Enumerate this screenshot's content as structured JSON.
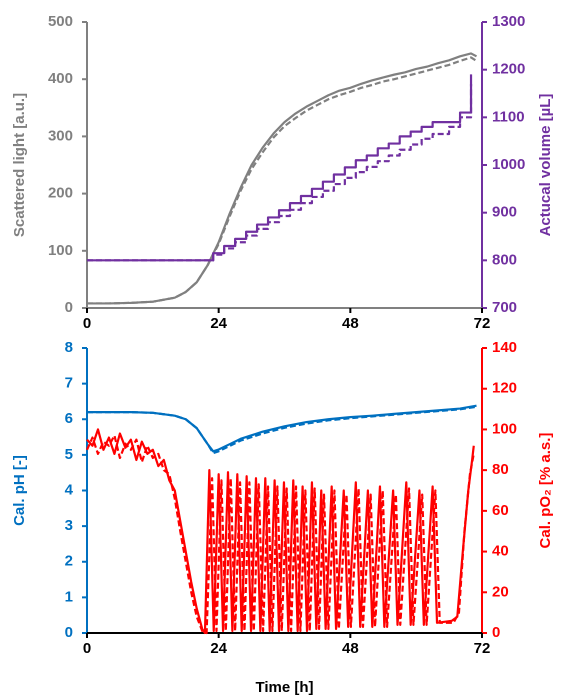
{
  "chart_data": [
    {
      "type": "line",
      "y_label": "Scattered light  [a.u.]",
      "y2_label": "Actucal volume  [µL]",
      "y_color": "#808080",
      "y2_color": "#7030a0",
      "xlim": [
        0,
        72
      ],
      "xticks": [
        0,
        24,
        48,
        72
      ],
      "ylim": [
        0,
        500
      ],
      "yticks": [
        0,
        100,
        200,
        300,
        400,
        500
      ],
      "y2lim": [
        700,
        1300
      ],
      "y2ticks": [
        700,
        800,
        900,
        1000,
        1100,
        1200,
        1300
      ],
      "series": [
        {
          "color": "#808080",
          "dash": false,
          "x": [
            0,
            4,
            8,
            12,
            16,
            18,
            20,
            22,
            24,
            26,
            28,
            30,
            32,
            34,
            36,
            38,
            40,
            42,
            44,
            46,
            48,
            50,
            52,
            54,
            56,
            58,
            60,
            62,
            64,
            66,
            68,
            70,
            71
          ],
          "values": [
            8,
            8,
            9,
            11,
            18,
            28,
            45,
            75,
            115,
            165,
            210,
            250,
            280,
            305,
            325,
            340,
            352,
            362,
            372,
            380,
            385,
            392,
            398,
            403,
            408,
            412,
            418,
            422,
            428,
            433,
            440,
            445,
            440
          ]
        },
        {
          "color": "#808080",
          "dash": true,
          "x": [
            0,
            4,
            8,
            12,
            16,
            18,
            20,
            22,
            24,
            26,
            28,
            30,
            32,
            34,
            36,
            38,
            40,
            42,
            44,
            46,
            48,
            50,
            52,
            54,
            56,
            58,
            60,
            62,
            64,
            66,
            68,
            70,
            71
          ],
          "values": [
            8,
            8,
            9,
            11,
            18,
            28,
            45,
            75,
            112,
            160,
            205,
            243,
            272,
            298,
            318,
            332,
            345,
            355,
            365,
            372,
            378,
            385,
            390,
            396,
            400,
            405,
            410,
            415,
            420,
            425,
            432,
            438,
            432
          ]
        },
        {
          "color": "#7030a0",
          "dash": false,
          "axis": "y2",
          "step": true,
          "x": [
            0,
            23,
            25,
            27,
            29,
            31,
            33,
            35,
            37,
            39,
            41,
            43,
            45,
            47,
            49,
            51,
            53,
            55,
            57,
            59,
            61,
            63,
            66,
            68,
            70
          ],
          "values": [
            800,
            815,
            830,
            845,
            860,
            875,
            890,
            905,
            920,
            935,
            950,
            965,
            980,
            995,
            1010,
            1020,
            1035,
            1045,
            1060,
            1070,
            1080,
            1090,
            1090,
            1110,
            1190
          ]
        },
        {
          "color": "#7030a0",
          "dash": true,
          "axis": "y2",
          "step": true,
          "x": [
            0,
            23,
            25,
            27,
            29,
            31,
            33,
            35,
            37,
            39,
            41,
            43,
            45,
            47,
            49,
            51,
            53,
            55,
            57,
            59,
            61,
            63,
            66,
            68,
            70
          ],
          "values": [
            800,
            812,
            825,
            838,
            852,
            866,
            880,
            893,
            906,
            920,
            933,
            946,
            960,
            973,
            985,
            996,
            1008,
            1020,
            1032,
            1043,
            1055,
            1065,
            1080,
            1100,
            1170
          ]
        }
      ]
    },
    {
      "type": "line",
      "x_label": "Time  [h]",
      "y_label": "Cal. pH  [-]",
      "y2_label": "Cal. pO₂  [% a.s.]",
      "y_color": "#0070c0",
      "y2_color": "#ff0000",
      "xlim": [
        0,
        72
      ],
      "xticks": [
        0,
        24,
        48,
        72
      ],
      "ylim": [
        0,
        8
      ],
      "yticks": [
        0,
        1,
        2,
        3,
        4,
        5,
        6,
        7,
        8
      ],
      "y2lim": [
        0,
        140
      ],
      "y2ticks": [
        0,
        20,
        40,
        60,
        80,
        100,
        120,
        140
      ],
      "series": [
        {
          "color": "#ff0000",
          "dash": false,
          "axis": "y2",
          "x": [
            0,
            1,
            2,
            3,
            4,
            5,
            6,
            7,
            8,
            9,
            10,
            11,
            12,
            13,
            14,
            15,
            16,
            17,
            18,
            19,
            20,
            21,
            21.5,
            22.3,
            23.1,
            24,
            24.8,
            25.7,
            26.5,
            27.4,
            28.2,
            29.1,
            29.9,
            30.8,
            31.6,
            32.5,
            33.3,
            34.2,
            35,
            35.9,
            36.7,
            37.6,
            38.4,
            39.3,
            40.1,
            41,
            41.8,
            42.7,
            43.5,
            44.6,
            45.4,
            46.8,
            47.6,
            49,
            49.8,
            51.2,
            52,
            53.4,
            54.2,
            55.8,
            56.6,
            58.2,
            59,
            60.6,
            61.4,
            63,
            63.8,
            66.5,
            67.5,
            68.5,
            69.5,
            70.2,
            70.5
          ],
          "values": [
            95,
            92,
            100,
            90,
            96,
            88,
            98,
            91,
            95,
            85,
            94,
            88,
            90,
            82,
            85,
            75,
            70,
            55,
            40,
            25,
            12,
            2,
            0,
            80,
            1,
            78,
            1,
            79,
            1,
            78,
            1,
            77,
            1,
            76,
            1,
            76,
            1,
            75,
            1,
            74,
            1,
            75,
            1,
            72,
            1,
            74,
            2,
            70,
            2,
            72,
            2,
            70,
            3,
            74,
            3,
            70,
            3,
            72,
            3,
            70,
            4,
            74,
            4,
            70,
            4,
            72,
            5,
            6,
            8,
            40,
            70,
            85,
            92
          ]
        },
        {
          "color": "#ff0000",
          "dash": true,
          "axis": "y2",
          "x": [
            0,
            1,
            2,
            3,
            4,
            5,
            6,
            7,
            8,
            9,
            10,
            11,
            12,
            13,
            14,
            15,
            16,
            17,
            18,
            19,
            20,
            21,
            21.8,
            22.8,
            23.6,
            24.5,
            25.3,
            26.2,
            27,
            27.9,
            28.7,
            29.6,
            30.4,
            31.3,
            32.1,
            33,
            33.8,
            34.7,
            35.5,
            36.4,
            37.2,
            38.1,
            38.9,
            39.8,
            40.6,
            41.5,
            42.3,
            43.2,
            44,
            45.1,
            45.9,
            47.3,
            48.1,
            49.5,
            50.3,
            51.7,
            52.5,
            53.9,
            54.7,
            56.3,
            57.1,
            58.7,
            59.5,
            61.1,
            61.9,
            63.5,
            64.3,
            66.8,
            67.8,
            68.8,
            69.8,
            70.5
          ],
          "values": [
            90,
            96,
            88,
            94,
            92,
            97,
            86,
            93,
            90,
            95,
            84,
            92,
            86,
            88,
            80,
            78,
            66,
            50,
            35,
            20,
            8,
            1,
            0,
            76,
            1,
            75,
            1,
            76,
            1,
            74,
            1,
            74,
            1,
            73,
            1,
            72,
            1,
            72,
            1,
            71,
            1,
            72,
            1,
            70,
            1,
            71,
            2,
            68,
            2,
            70,
            2,
            68,
            3,
            71,
            3,
            68,
            3,
            70,
            3,
            68,
            4,
            71,
            4,
            68,
            4,
            70,
            5,
            5,
            10,
            50,
            78,
            88
          ]
        },
        {
          "color": "#0070c0",
          "dash": false,
          "x": [
            0,
            4,
            8,
            12,
            16,
            18,
            20,
            22,
            23,
            24,
            26,
            28,
            32,
            36,
            40,
            44,
            48,
            52,
            56,
            60,
            64,
            68,
            71
          ],
          "values": [
            6.2,
            6.2,
            6.2,
            6.18,
            6.1,
            6.0,
            5.75,
            5.3,
            5.1,
            5.15,
            5.3,
            5.45,
            5.65,
            5.8,
            5.92,
            6.0,
            6.06,
            6.1,
            6.15,
            6.2,
            6.25,
            6.3,
            6.38
          ]
        },
        {
          "color": "#0070c0",
          "dash": true,
          "x": [
            0,
            4,
            8,
            12,
            16,
            18,
            20,
            22,
            23,
            24,
            26,
            28,
            32,
            36,
            40,
            44,
            48,
            52,
            56,
            60,
            64,
            68,
            71
          ],
          "values": [
            6.2,
            6.2,
            6.2,
            6.18,
            6.1,
            6.0,
            5.75,
            5.3,
            5.05,
            5.1,
            5.25,
            5.4,
            5.6,
            5.76,
            5.88,
            5.97,
            6.03,
            6.08,
            6.13,
            6.18,
            6.23,
            6.28,
            6.35
          ]
        }
      ]
    }
  ]
}
